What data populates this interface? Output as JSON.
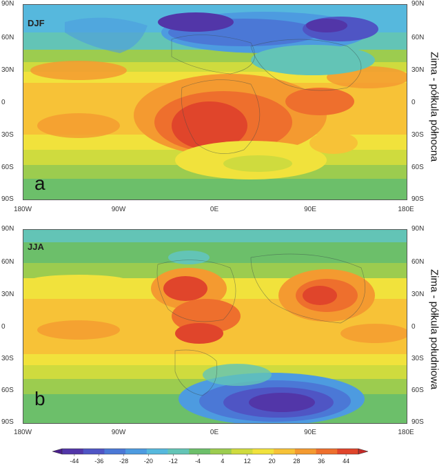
{
  "panels": [
    {
      "id": "a",
      "season": "DJF",
      "letter": "a",
      "side_title": "Zima - półkula północna",
      "lat_labels_left": [
        "90N",
        "60N",
        "30N",
        "0",
        "30S",
        "60S",
        "90S"
      ],
      "lat_labels_right": [
        "90N",
        "60N",
        "30N",
        "0",
        "30S",
        "60S",
        "90S"
      ],
      "lon_labels": [
        "180W",
        "90W",
        "0E",
        "90E",
        "180E"
      ]
    },
    {
      "id": "b",
      "season": "JJA",
      "letter": "b",
      "side_title": "Zima - półkula południowa",
      "lat_labels_left": [
        "90N",
        "60N",
        "30N",
        "0",
        "30S",
        "60S",
        "90S"
      ],
      "lat_labels_right": [
        "90N",
        "60N",
        "30N",
        "0",
        "30S",
        "60S",
        "90S"
      ],
      "lon_labels": [
        "180W",
        "90W",
        "0E",
        "90E",
        "180E"
      ]
    }
  ],
  "colorbar": {
    "tick_labels": [
      "-44",
      "-36",
      "-28",
      "-20",
      "-12",
      "-4",
      "4",
      "12",
      "20",
      "28",
      "36",
      "44"
    ],
    "colors": [
      "#4a1f8c",
      "#5236a8",
      "#4f55c4",
      "#4b78d6",
      "#4d9be0",
      "#56b8dd",
      "#63c4b6",
      "#6cbf6a",
      "#9ccc4f",
      "#cfdb3e",
      "#f1e23c",
      "#f7c237",
      "#f49a30",
      "#ee6f2d",
      "#e0452b",
      "#c42a28"
    ]
  }
}
